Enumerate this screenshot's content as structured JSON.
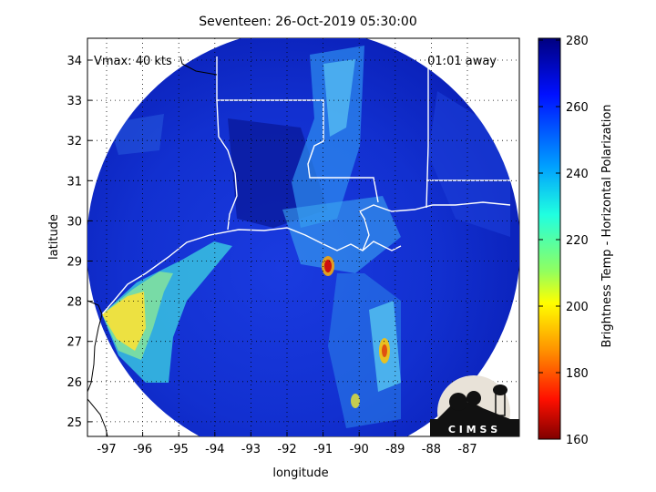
{
  "title": "Seventeen: 26-Oct-2019 05:30:00",
  "vmax_label": "Vmax: 40 kts",
  "time_label": "01:01 away",
  "xlabel": "longitude",
  "ylabel": "latitude",
  "colorbar": {
    "label": "Brightness Temp - Horizontal Polarization",
    "min": 160,
    "max": 280,
    "ticks": [
      "280",
      "260",
      "240",
      "220",
      "200",
      "180",
      "160"
    ]
  },
  "axes": {
    "x_ticks": [
      "-97",
      "-96",
      "-95",
      "-94",
      "-93",
      "-92",
      "-91",
      "-90",
      "-89",
      "-88",
      "-87"
    ],
    "y_ticks": [
      "34",
      "33",
      "32",
      "31",
      "30",
      "29",
      "28",
      "27",
      "26",
      "25"
    ],
    "grid": true
  },
  "logo": {
    "text": "C I M S S",
    "colors": {
      "dark": "#111111",
      "light": "#e8e2d8"
    }
  },
  "colors": {
    "cold": "#0a1fb0",
    "warm_band": "#f5e63a",
    "hot_spot": "#cc1010"
  }
}
